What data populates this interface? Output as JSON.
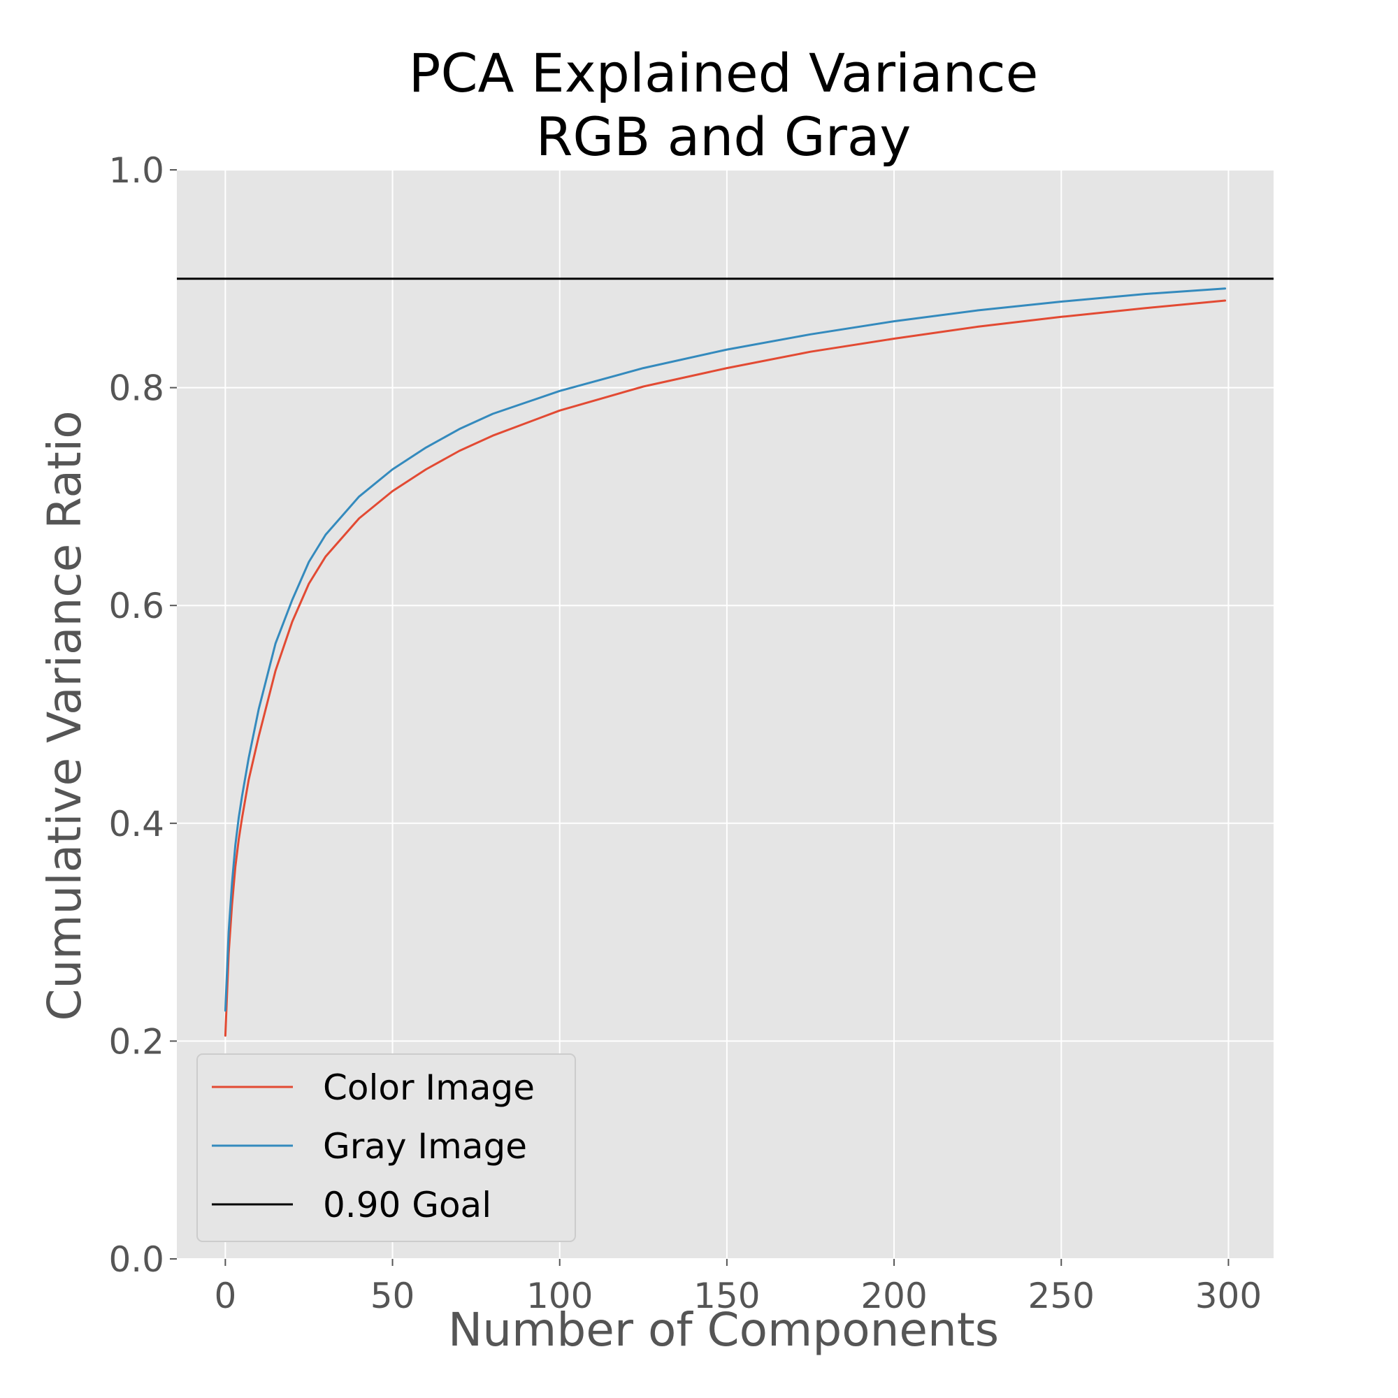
{
  "chart_data": {
    "type": "line",
    "title": [
      "PCA Explained Variance",
      "RGB and Gray"
    ],
    "xlabel": "Number of Components",
    "ylabel": "Cumulative Variance Ratio",
    "xlim": [
      -14.5,
      313.5
    ],
    "ylim": [
      0,
      1.0
    ],
    "xticks": [
      0,
      50,
      100,
      150,
      200,
      250,
      300
    ],
    "xtick_labels": [
      "0",
      "50",
      "100",
      "150",
      "200",
      "250",
      "300"
    ],
    "yticks": [
      0,
      0.2,
      0.4,
      0.6,
      0.8,
      1.0
    ],
    "ytick_labels": [
      "0.0",
      "0.2",
      "0.4",
      "0.6",
      "0.8",
      "1.0"
    ],
    "grid": true,
    "legend_position": "lower-left",
    "background": "#e5e5e5",
    "series": [
      {
        "name": "Color Image",
        "color": "#e24a33",
        "x": [
          0,
          1,
          2,
          3,
          4,
          5,
          7,
          10,
          15,
          20,
          25,
          30,
          40,
          50,
          60,
          70,
          80,
          100,
          125,
          150,
          175,
          200,
          225,
          250,
          275,
          299
        ],
        "values": [
          0.205,
          0.28,
          0.325,
          0.36,
          0.385,
          0.405,
          0.44,
          0.48,
          0.54,
          0.585,
          0.62,
          0.645,
          0.68,
          0.705,
          0.725,
          0.742,
          0.756,
          0.779,
          0.801,
          0.818,
          0.833,
          0.845,
          0.856,
          0.865,
          0.873,
          0.88
        ]
      },
      {
        "name": "Gray Image",
        "color": "#348abd",
        "x": [
          0,
          1,
          2,
          3,
          4,
          5,
          7,
          10,
          15,
          20,
          25,
          30,
          40,
          50,
          60,
          70,
          80,
          100,
          125,
          150,
          175,
          200,
          225,
          250,
          275,
          299
        ],
        "values": [
          0.228,
          0.3,
          0.345,
          0.38,
          0.405,
          0.425,
          0.46,
          0.505,
          0.565,
          0.605,
          0.64,
          0.665,
          0.7,
          0.725,
          0.745,
          0.762,
          0.776,
          0.797,
          0.818,
          0.835,
          0.849,
          0.861,
          0.871,
          0.879,
          0.886,
          0.891
        ]
      },
      {
        "name": "0.90 Goal",
        "color": "#000000",
        "kind": "hline",
        "value": 0.9
      }
    ]
  }
}
